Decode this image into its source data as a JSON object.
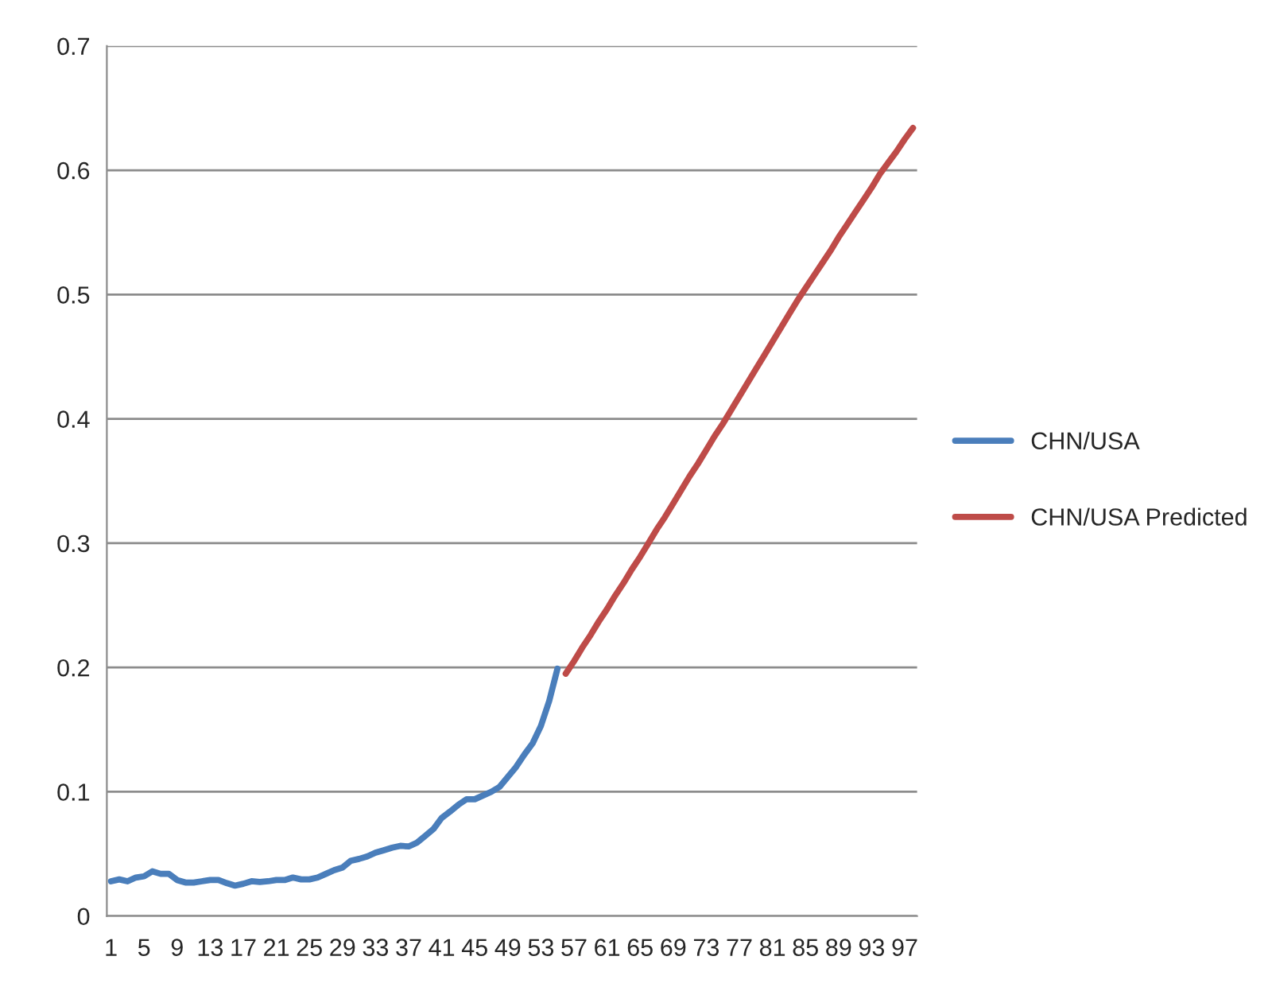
{
  "chart_data": {
    "type": "line",
    "categories": [
      "1",
      null,
      null,
      null,
      "5",
      null,
      null,
      null,
      "9",
      null,
      null,
      null,
      "13",
      null,
      null,
      null,
      "17",
      null,
      null,
      null,
      "21",
      null,
      null,
      null,
      "25",
      null,
      null,
      null,
      "29",
      null,
      null,
      null,
      "33",
      null,
      null,
      null,
      "37",
      null,
      null,
      null,
      "41",
      null,
      null,
      null,
      "45",
      null,
      null,
      null,
      "49",
      null,
      null,
      null,
      "53",
      null,
      null,
      null,
      "57",
      null,
      null,
      null,
      "61",
      null,
      null,
      null,
      "65",
      null,
      null,
      null,
      "69",
      null,
      null,
      null,
      "73",
      null,
      null,
      null,
      "77",
      null,
      null,
      null,
      "81",
      null,
      null,
      null,
      "85",
      null,
      null,
      null,
      "89",
      null,
      null,
      null,
      "93",
      null,
      null,
      null,
      "97",
      null
    ],
    "series": [
      {
        "name": "CHN/USA",
        "color": "#4a7ebb",
        "values": [
          0.028,
          0.0295,
          0.028,
          0.031,
          0.032,
          0.036,
          0.034,
          0.034,
          0.029,
          0.027,
          0.027,
          0.028,
          0.029,
          0.029,
          0.0265,
          0.0245,
          0.026,
          0.028,
          0.0275,
          0.028,
          0.029,
          0.029,
          0.031,
          0.0295,
          0.0295,
          0.031,
          0.034,
          0.037,
          0.039,
          0.0445,
          0.046,
          0.048,
          0.051,
          0.053,
          0.055,
          0.0565,
          0.056,
          0.059,
          0.0645,
          0.07,
          0.079,
          0.084,
          0.0895,
          0.094,
          0.094,
          0.097,
          0.1,
          0.104,
          0.112,
          0.12,
          0.13,
          0.139,
          0.153,
          0.173,
          0.199,
          null,
          null,
          null,
          null,
          null,
          null,
          null,
          null,
          null,
          null,
          null,
          null,
          null,
          null,
          null,
          null,
          null,
          null,
          null,
          null,
          null,
          null,
          null,
          null,
          null,
          null,
          null,
          null,
          null,
          null,
          null,
          null,
          null,
          null,
          null,
          null,
          null,
          null,
          null,
          null,
          null,
          null,
          null
        ]
      },
      {
        "name": "CHN/USA Predicted",
        "color": "#be4b48",
        "values": [
          null,
          null,
          null,
          null,
          null,
          null,
          null,
          null,
          null,
          null,
          null,
          null,
          null,
          null,
          null,
          null,
          null,
          null,
          null,
          null,
          null,
          null,
          null,
          null,
          null,
          null,
          null,
          null,
          null,
          null,
          null,
          null,
          null,
          null,
          null,
          null,
          null,
          null,
          null,
          null,
          null,
          null,
          null,
          null,
          null,
          null,
          null,
          null,
          null,
          null,
          null,
          null,
          null,
          null,
          null,
          0.195,
          0.205,
          0.216,
          0.226,
          0.237,
          0.247,
          0.258,
          0.268,
          0.279,
          0.289,
          0.3,
          0.311,
          0.321,
          0.332,
          0.343,
          0.354,
          0.364,
          0.375,
          0.386,
          0.396,
          0.407,
          0.418,
          0.429,
          0.44,
          0.451,
          0.462,
          0.473,
          0.484,
          0.495,
          0.505,
          0.515,
          0.525,
          0.535,
          0.546,
          0.556,
          0.566,
          0.576,
          0.586,
          0.597,
          0.606,
          0.615,
          0.625,
          0.634
        ]
      }
    ],
    "ylim": [
      0,
      0.7
    ],
    "yticks": [
      0,
      0.1,
      0.2,
      0.3,
      0.4,
      0.5,
      0.6,
      0.7
    ],
    "grid": "y",
    "legend": "right"
  }
}
